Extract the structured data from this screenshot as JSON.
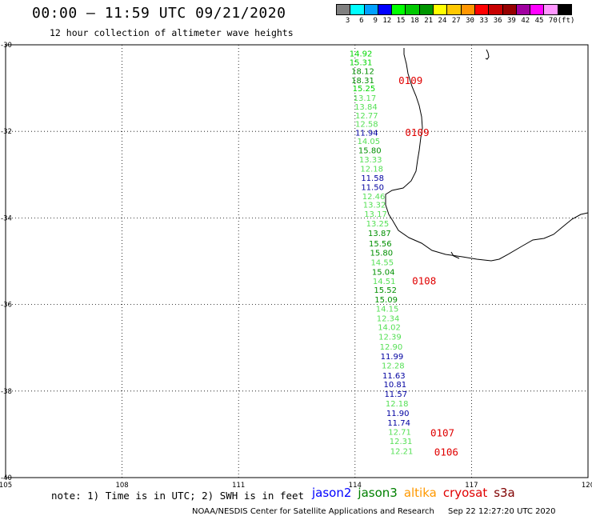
{
  "title": "00:00 – 11:59 UTC 09/21/2020",
  "subtitle": "12 hour collection of altimeter wave heights",
  "colorbar": {
    "colors": [
      "#808080",
      "#00ffff",
      "#00a0ff",
      "#0000ff",
      "#00ff00",
      "#00c800",
      "#009600",
      "#ffff00",
      "#ffc800",
      "#ff9600",
      "#ff0000",
      "#c80000",
      "#960000",
      "#a000a0",
      "#ff00ff",
      "#ff96ff",
      "#000000"
    ],
    "labels": [
      "3",
      "6",
      "9",
      "12",
      "15",
      "18",
      "21",
      "24",
      "27",
      "30",
      "33",
      "36",
      "39",
      "42",
      "45",
      "70",
      "(ft)"
    ]
  },
  "map": {
    "lon_range": [
      105,
      120
    ],
    "lat_range": [
      -40,
      -30
    ],
    "lon_ticks": [
      "105",
      "108",
      "111",
      "114",
      "117",
      "120"
    ],
    "lat_ticks": [
      "-30",
      "-32",
      "-34",
      "-36",
      "-38",
      "-40"
    ],
    "grid": "dotted"
  },
  "observations": [
    {
      "v": "14.92",
      "lat": -30.19,
      "lon": 114.15,
      "c": "#00d800"
    },
    {
      "v": "15.31",
      "lat": -30.4,
      "lon": 114.15,
      "c": "#00d800"
    },
    {
      "v": "18.12",
      "lat": -30.6,
      "lon": 114.2,
      "c": "#009000"
    },
    {
      "v": "18.31",
      "lat": -30.81,
      "lon": 114.2,
      "c": "#009000"
    },
    {
      "v": "15.25",
      "lat": -31.0,
      "lon": 114.23,
      "c": "#00d800"
    },
    {
      "v": "13.17",
      "lat": -31.22,
      "lon": 114.25,
      "c": "#55e055"
    },
    {
      "v": "13.84",
      "lat": -31.42,
      "lon": 114.28,
      "c": "#55e055"
    },
    {
      "v": "12.77",
      "lat": -31.63,
      "lon": 114.3,
      "c": "#55e055"
    },
    {
      "v": "12.58",
      "lat": -31.82,
      "lon": 114.3,
      "c": "#55e055"
    },
    {
      "v": "11.94",
      "lat": -32.02,
      "lon": 114.3,
      "c": "#0000a0"
    },
    {
      "v": "14.05",
      "lat": -32.22,
      "lon": 114.35,
      "c": "#55e055"
    },
    {
      "v": "15.80",
      "lat": -32.43,
      "lon": 114.38,
      "c": "#009000"
    },
    {
      "v": "13.33",
      "lat": -32.64,
      "lon": 114.4,
      "c": "#55e055"
    },
    {
      "v": "12.18",
      "lat": -32.86,
      "lon": 114.43,
      "c": "#55e055"
    },
    {
      "v": "11.58",
      "lat": -33.07,
      "lon": 114.45,
      "c": "#0000a0"
    },
    {
      "v": "11.50",
      "lat": -33.28,
      "lon": 114.45,
      "c": "#0000a0"
    },
    {
      "v": "12.46",
      "lat": -33.49,
      "lon": 114.48,
      "c": "#55e055"
    },
    {
      "v": "13.32",
      "lat": -33.69,
      "lon": 114.5,
      "c": "#55e055"
    },
    {
      "v": "13.17",
      "lat": -33.9,
      "lon": 114.53,
      "c": "#55e055"
    },
    {
      "v": "13.25",
      "lat": -34.12,
      "lon": 114.58,
      "c": "#55e055"
    },
    {
      "v": "13.87",
      "lat": -34.34,
      "lon": 114.63,
      "c": "#009000"
    },
    {
      "v": "15.56",
      "lat": -34.58,
      "lon": 114.65,
      "c": "#009000"
    },
    {
      "v": "15.80",
      "lat": -34.8,
      "lon": 114.68,
      "c": "#009000"
    },
    {
      "v": "14.55",
      "lat": -35.02,
      "lon": 114.7,
      "c": "#55e055"
    },
    {
      "v": "15.04",
      "lat": -35.24,
      "lon": 114.73,
      "c": "#009000"
    },
    {
      "v": "14.51",
      "lat": -35.45,
      "lon": 114.75,
      "c": "#55e055"
    },
    {
      "v": "15.52",
      "lat": -35.66,
      "lon": 114.78,
      "c": "#009000"
    },
    {
      "v": "15.09",
      "lat": -35.88,
      "lon": 114.8,
      "c": "#009000"
    },
    {
      "v": "14.15",
      "lat": -36.09,
      "lon": 114.83,
      "c": "#55e055"
    },
    {
      "v": "12.34",
      "lat": -36.31,
      "lon": 114.85,
      "c": "#55e055"
    },
    {
      "v": "14.02",
      "lat": -36.52,
      "lon": 114.88,
      "c": "#55e055"
    },
    {
      "v": "12.39",
      "lat": -36.74,
      "lon": 114.9,
      "c": "#55e055"
    },
    {
      "v": "12.90",
      "lat": -36.97,
      "lon": 114.93,
      "c": "#55e055"
    },
    {
      "v": "11.99",
      "lat": -37.19,
      "lon": 114.95,
      "c": "#0000a0"
    },
    {
      "v": "12.28",
      "lat": -37.4,
      "lon": 114.98,
      "c": "#55e055"
    },
    {
      "v": "11.63",
      "lat": -37.63,
      "lon": 115.0,
      "c": "#0000a0"
    },
    {
      "v": "10.81",
      "lat": -37.84,
      "lon": 115.03,
      "c": "#0000a0"
    },
    {
      "v": "11.57",
      "lat": -38.06,
      "lon": 115.05,
      "c": "#0000a0"
    },
    {
      "v": "12.18",
      "lat": -38.28,
      "lon": 115.08,
      "c": "#55e055"
    },
    {
      "v": "11.90",
      "lat": -38.5,
      "lon": 115.1,
      "c": "#0000a0"
    },
    {
      "v": "11.74",
      "lat": -38.72,
      "lon": 115.13,
      "c": "#0000a0"
    },
    {
      "v": "12.71",
      "lat": -38.94,
      "lon": 115.15,
      "c": "#55e055"
    },
    {
      "v": "12.31",
      "lat": -39.15,
      "lon": 115.18,
      "c": "#55e055"
    },
    {
      "v": "12.21",
      "lat": -39.38,
      "lon": 115.2,
      "c": "#55e055"
    }
  ],
  "pass_times": [
    {
      "t": "0109",
      "lat": -30.83,
      "lon": 115.43
    },
    {
      "t": "0109",
      "lat": -32.03,
      "lon": 115.6
    },
    {
      "t": "0108",
      "lat": -35.46,
      "lon": 115.78
    },
    {
      "t": "0107",
      "lat": -38.97,
      "lon": 116.25
    },
    {
      "t": "0106",
      "lat": -39.42,
      "lon": 116.35
    }
  ],
  "note": "note:  1) Time is in UTC; 2) SWH is in feet",
  "legend": [
    {
      "label": "jason2",
      "color": "#0000ff"
    },
    {
      "label": "jason3",
      "color": "#008000"
    },
    {
      "label": "altika",
      "color": "#ff9900"
    },
    {
      "label": "cryosat",
      "color": "#e00000"
    },
    {
      "label": "s3a",
      "color": "#800000"
    }
  ],
  "footer": {
    "center": "NOAA/NESDIS Center for Satellite Applications and Research",
    "timestamp": "Sep 22 12:27:20 UTC 2020"
  }
}
